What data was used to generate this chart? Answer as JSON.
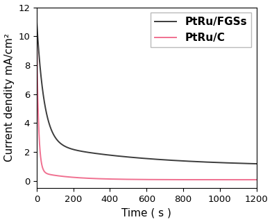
{
  "xlabel": "Time ( s )",
  "ylabel": "Current dendity mA/cm²",
  "xlim": [
    0,
    1200
  ],
  "ylim": [
    -0.5,
    12
  ],
  "yticks": [
    0,
    2,
    4,
    6,
    8,
    10,
    12
  ],
  "xticks": [
    0,
    200,
    400,
    600,
    800,
    1000,
    1200
  ],
  "ptru_fgs_color": "#3c3c3c",
  "ptru_c_color": "#f07090",
  "legend_labels": [
    "PtRu/FGSs",
    "PtRu/C"
  ],
  "legend_fontsize": 11,
  "axis_fontsize": 11,
  "tick_fontsize": 9.5,
  "linewidth": 1.4,
  "fgs_A1": 8.5,
  "fgs_k1": 0.025,
  "fgs_A2": 1.6,
  "fgs_k2": 0.0018,
  "fgs_plateau": 1.0,
  "c_A1": 9.5,
  "c_k1": 0.1,
  "c_A2": 0.55,
  "c_k2": 0.006,
  "c_plateau": 0.08
}
